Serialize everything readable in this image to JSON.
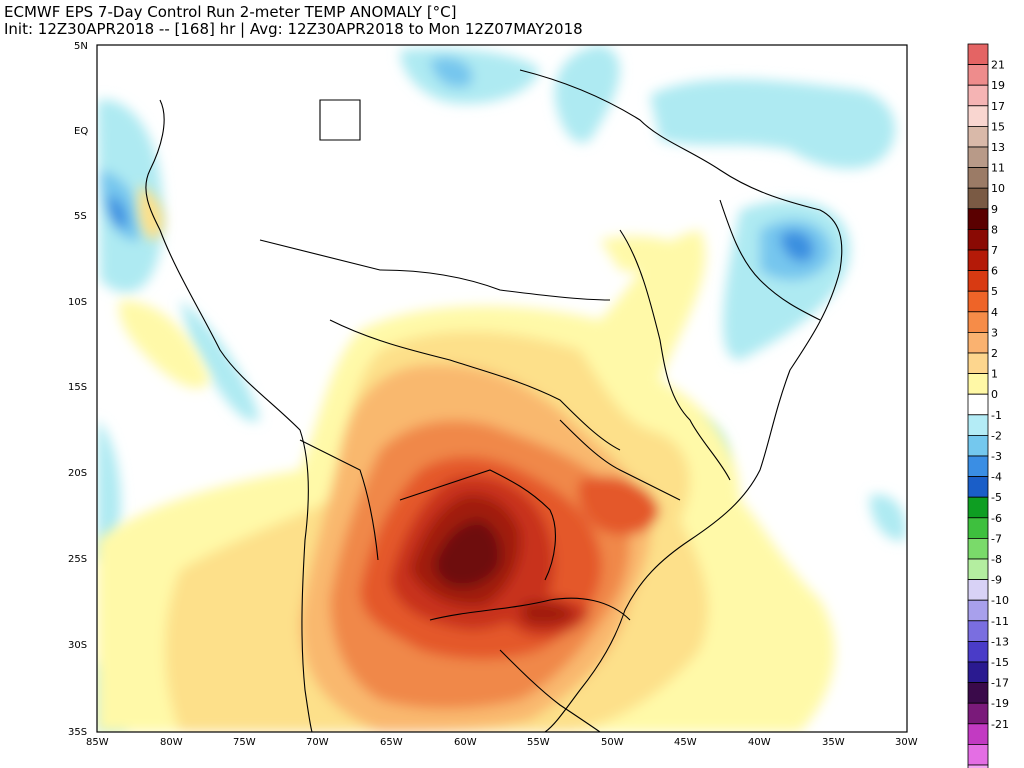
{
  "header": {
    "title_line1": "ECMWF EPS 7-Day Control Run 2-meter TEMP ANOMALY [°C]",
    "title_line2": "Init: 12Z30APR2018 -- [168] hr | Avg: 12Z30APR2018 to Mon 12Z07MAY2018"
  },
  "map": {
    "lat_labels": [
      "5N",
      "EQ",
      "5S",
      "10S",
      "15S",
      "20S",
      "25S",
      "30S",
      "35S"
    ],
    "lon_labels": [
      "85W",
      "80W",
      "75W",
      "70W",
      "65W",
      "60W",
      "55W",
      "50W",
      "45W",
      "40W",
      "35W",
      "30W"
    ],
    "colors": {
      "ocean_cool": "#aeeaf2",
      "cool_mid": "#76c6ee",
      "cool_dark": "#3a8fe0",
      "warm_0": "#fff9a8",
      "warm_1": "#fde08a",
      "warm_2": "#f9b86e",
      "warm_3": "#f0884a",
      "warm_4": "#e4582c",
      "warm_5": "#c8331a",
      "warm_6": "#a01f10",
      "warm_7": "#6e0e08"
    }
  },
  "legend": {
    "items": [
      {
        "label": "21",
        "color": "#e46464"
      },
      {
        "label": "19",
        "color": "#ee8c8c"
      },
      {
        "label": "17",
        "color": "#f5b4b4"
      },
      {
        "label": "15",
        "color": "#f9d6d0"
      },
      {
        "label": "13",
        "color": "#d9b9a9"
      },
      {
        "label": "11",
        "color": "#b89a88"
      },
      {
        "label": "10",
        "color": "#9b7b66"
      },
      {
        "label": "9",
        "color": "#7a5a44"
      },
      {
        "label": "8",
        "color": "#5a0000"
      },
      {
        "label": "7",
        "color": "#8a0a04"
      },
      {
        "label": "6",
        "color": "#b41a08"
      },
      {
        "label": "5",
        "color": "#d83a12"
      },
      {
        "label": "4",
        "color": "#ee6428"
      },
      {
        "label": "3",
        "color": "#f68c48"
      },
      {
        "label": "2",
        "color": "#fab270"
      },
      {
        "label": "1",
        "color": "#fdd68e"
      },
      {
        "label": "0",
        "color": "#fff8a6"
      },
      {
        "label": "-1",
        "color": "#ffffff"
      },
      {
        "label": "-2",
        "color": "#b4ecf6"
      },
      {
        "label": "-3",
        "color": "#74c8ee"
      },
      {
        "label": "-4",
        "color": "#3a8ee4"
      },
      {
        "label": "-5",
        "color": "#1a5ec8"
      },
      {
        "label": "-6",
        "color": "#0e9e22"
      },
      {
        "label": "-7",
        "color": "#3ec03e"
      },
      {
        "label": "-8",
        "color": "#7ada6a"
      },
      {
        "label": "-9",
        "color": "#b4eea0"
      },
      {
        "label": "-10",
        "color": "#d8d2f6"
      },
      {
        "label": "-11",
        "color": "#a8a0ec"
      },
      {
        "label": "-13",
        "color": "#7a6ee0"
      },
      {
        "label": "-15",
        "color": "#4a3cc8"
      },
      {
        "label": "-17",
        "color": "#2a1a90"
      },
      {
        "label": "-19",
        "color": "#3a0a4a"
      },
      {
        "label": "-21",
        "color": "#7a1a7a"
      },
      {
        "label": "",
        "color": "#c23ac2"
      },
      {
        "label": "",
        "color": "#e46ee4"
      },
      {
        "label": "",
        "color": "#f4a6f4"
      }
    ]
  }
}
